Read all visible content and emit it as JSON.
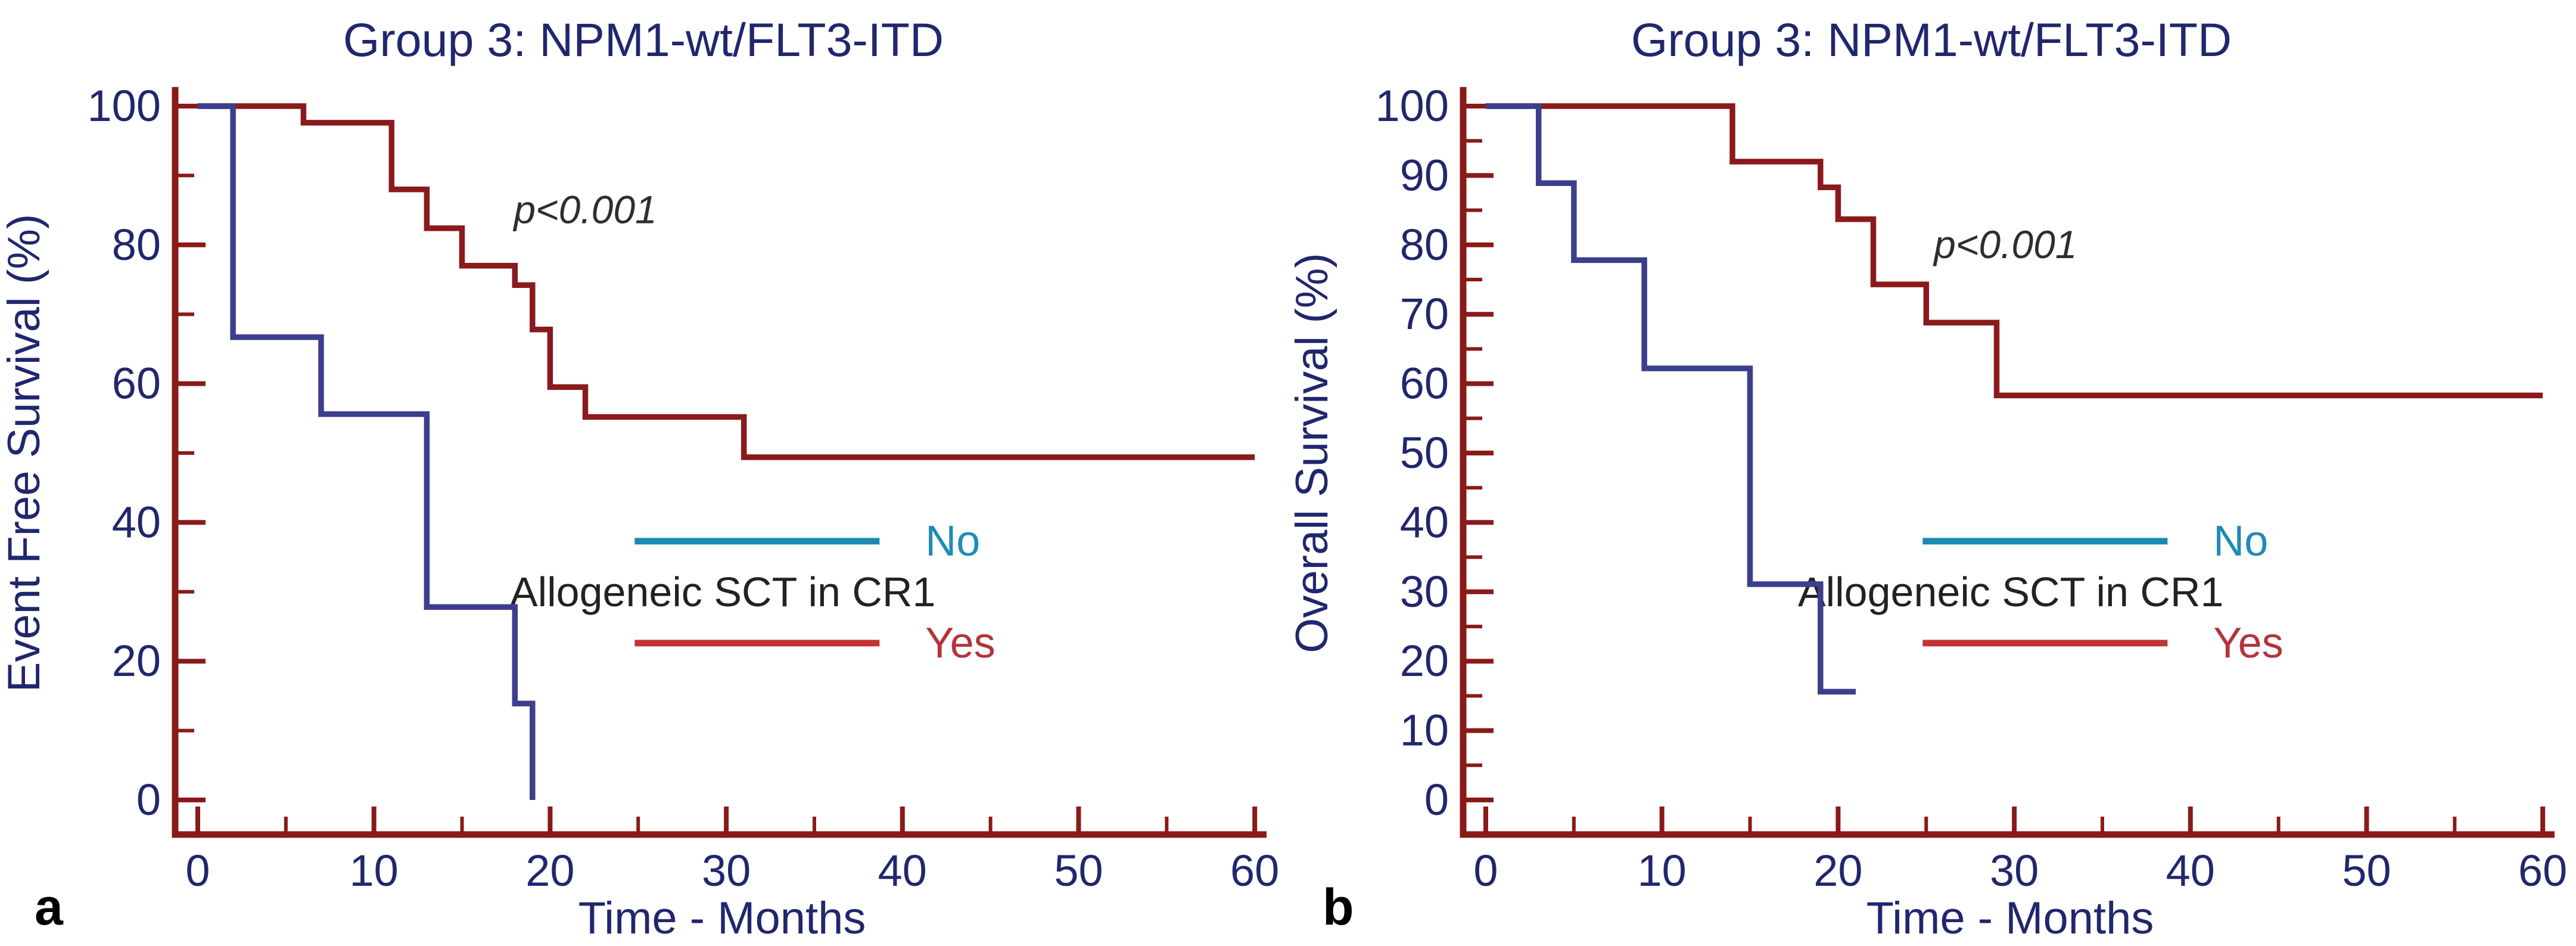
{
  "figure": {
    "background": "#ffffff",
    "colors": {
      "title_text": "#20276d",
      "tick_label_text": "#20276d",
      "axis_line": "#8a1a18",
      "annotation_text": "#2e2e2e",
      "panel_letter_text": "#000000"
    }
  },
  "chart_data": [
    {
      "type": "line",
      "subtype": "kaplan-meier-step",
      "panel_letter": "a",
      "title": "Group 3: NPM1-wt/FLT3-ITD",
      "xlabel": "Time  - Months",
      "ylabel": "Event Free  Survival (%)",
      "xlim": [
        0,
        60
      ],
      "ylim": [
        0,
        100
      ],
      "grid": false,
      "x_ticks_major": [
        0,
        10,
        20,
        30,
        40,
        50,
        60
      ],
      "x_ticks_minor": [
        5,
        15,
        25,
        35,
        45,
        55
      ],
      "y_ticks_major": [
        0,
        20,
        40,
        60,
        80,
        100
      ],
      "y_ticks_minor": [
        10,
        30,
        50,
        70,
        90
      ],
      "annotation": {
        "text": "p<0.001",
        "x": 22,
        "y": 85
      },
      "legend": {
        "title": "Allogeneic SCT in CR1",
        "position": "inside-center-right",
        "entries": [
          {
            "label": "No",
            "line_color": "#1b8ab3",
            "text_color": "#1d8cb5"
          },
          {
            "label": "Yes",
            "line_color": "#c23434",
            "text_color": "#b2353b"
          }
        ]
      },
      "series": [
        {
          "name": "Yes",
          "color": "#8b1a1d",
          "steps": [
            [
              0,
              100
            ],
            [
              6,
              100
            ],
            [
              6,
              97.6
            ],
            [
              11,
              97.6
            ],
            [
              11,
              88
            ],
            [
              13,
              88
            ],
            [
              13,
              82.4
            ],
            [
              15,
              82.4
            ],
            [
              15,
              77
            ],
            [
              18,
              77
            ],
            [
              18,
              74.2
            ],
            [
              19,
              74.2
            ],
            [
              19,
              67.8
            ],
            [
              20,
              67.8
            ],
            [
              20,
              59.5
            ],
            [
              22,
              59.5
            ],
            [
              22,
              55.2
            ],
            [
              31,
              55.2
            ],
            [
              31,
              49.4
            ],
            [
              60,
              49.4
            ]
          ]
        },
        {
          "name": "No",
          "color": "#3b3f8c",
          "steps": [
            [
              0,
              100
            ],
            [
              2,
              100
            ],
            [
              2,
              66.7
            ],
            [
              7,
              66.7
            ],
            [
              7,
              55.6
            ],
            [
              13,
              55.6
            ],
            [
              13,
              27.8
            ],
            [
              18,
              27.8
            ],
            [
              18,
              13.9
            ],
            [
              19,
              13.9
            ],
            [
              19,
              0
            ]
          ]
        }
      ]
    },
    {
      "type": "line",
      "subtype": "kaplan-meier-step",
      "panel_letter": "b",
      "title": "Group 3: NPM1-wt/FLT3-ITD",
      "xlabel": "Time - Months",
      "ylabel": "Overall  Survival (%)",
      "xlim": [
        0,
        60
      ],
      "ylim": [
        0,
        100
      ],
      "grid": false,
      "x_ticks_major": [
        0,
        10,
        20,
        30,
        40,
        50,
        60
      ],
      "x_ticks_minor": [
        5,
        15,
        25,
        35,
        45,
        55
      ],
      "y_ticks_major": [
        0,
        10,
        20,
        30,
        40,
        50,
        60,
        70,
        80,
        90,
        100
      ],
      "y_ticks_minor": [
        5,
        15,
        25,
        35,
        45,
        55,
        65,
        75,
        85,
        95
      ],
      "annotation": {
        "text": "p<0.001",
        "x": 29.5,
        "y": 80
      },
      "legend": {
        "title": "Allogeneic SCT in CR1",
        "position": "inside-center-right",
        "entries": [
          {
            "label": "No",
            "line_color": "#1b8ab3",
            "text_color": "#1d8cb5"
          },
          {
            "label": "Yes",
            "line_color": "#c23434",
            "text_color": "#b2353b"
          }
        ]
      },
      "series": [
        {
          "name": "Yes",
          "color": "#8b1a1d",
          "steps": [
            [
              0,
              100
            ],
            [
              14,
              100
            ],
            [
              14,
              92
            ],
            [
              19,
              92
            ],
            [
              19,
              88.3
            ],
            [
              20,
              88.3
            ],
            [
              20,
              83.7
            ],
            [
              22,
              83.7
            ],
            [
              22,
              74.3
            ],
            [
              25,
              74.3
            ],
            [
              25,
              68.8
            ],
            [
              29,
              68.8
            ],
            [
              29,
              58.3
            ],
            [
              60,
              58.3
            ]
          ]
        },
        {
          "name": "No",
          "color": "#3b3f8c",
          "steps": [
            [
              0,
              100
            ],
            [
              3,
              100
            ],
            [
              3,
              88.9
            ],
            [
              5,
              88.9
            ],
            [
              5,
              77.8
            ],
            [
              9,
              77.8
            ],
            [
              9,
              62.2
            ],
            [
              15,
              62.2
            ],
            [
              15,
              31.1
            ],
            [
              19,
              31.1
            ],
            [
              19,
              15.6
            ],
            [
              21,
              15.6
            ]
          ]
        }
      ]
    }
  ]
}
